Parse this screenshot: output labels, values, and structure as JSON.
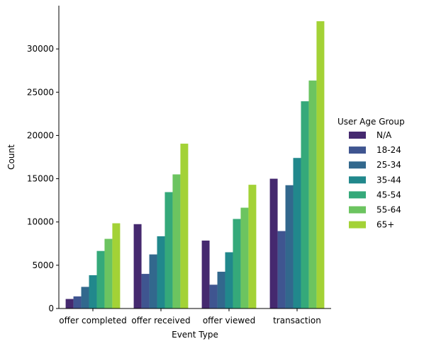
{
  "chart_data": {
    "type": "bar",
    "xlabel": "Event Type",
    "ylabel": "Count",
    "categories": [
      "offer completed",
      "offer received",
      "offer viewed",
      "transaction"
    ],
    "ylim": [
      0,
      35000
    ],
    "yticks": [
      0,
      5000,
      10000,
      15000,
      20000,
      25000,
      30000
    ],
    "grid": false,
    "legend": {
      "title": "User Age Group",
      "placement": "right"
    },
    "series": [
      {
        "name": "N/A",
        "color": "#45296f",
        "values": [
          1100,
          9750,
          7850,
          15000
        ]
      },
      {
        "name": "18-24",
        "color": "#3f5590",
        "values": [
          1400,
          4000,
          2750,
          8950
        ]
      },
      {
        "name": "25-34",
        "color": "#32688d",
        "values": [
          2500,
          6250,
          4250,
          14250
        ]
      },
      {
        "name": "35-44",
        "color": "#21888c",
        "values": [
          3850,
          8350,
          6500,
          17400
        ]
      },
      {
        "name": "45-54",
        "color": "#35a97a",
        "values": [
          6650,
          13450,
          10350,
          23950
        ]
      },
      {
        "name": "55-64",
        "color": "#6cc460",
        "values": [
          8050,
          15500,
          11650,
          26350
        ]
      },
      {
        "name": "65+",
        "color": "#a3d236",
        "values": [
          9850,
          19050,
          14300,
          33200
        ]
      }
    ]
  }
}
